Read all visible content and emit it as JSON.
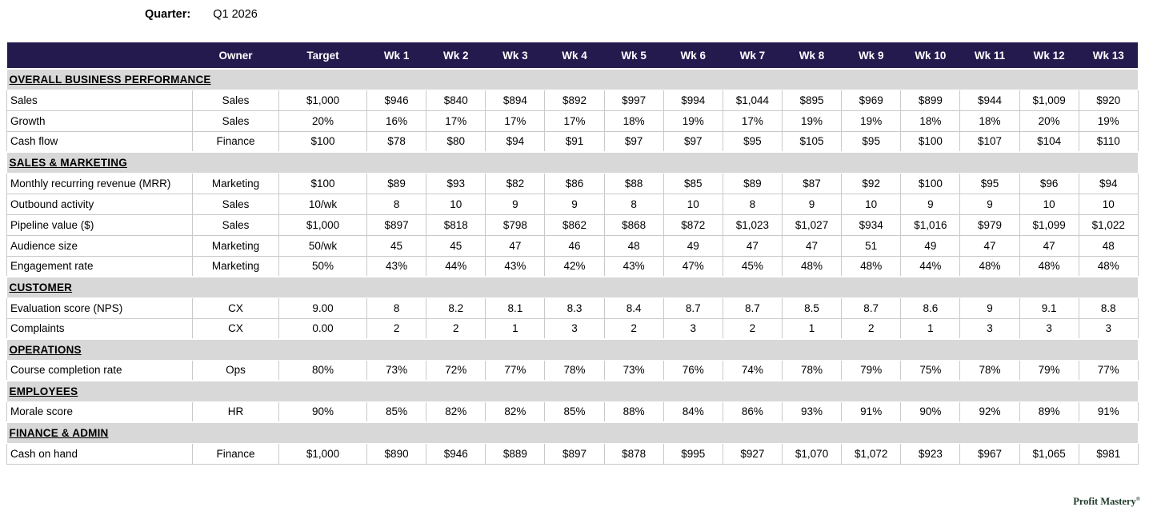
{
  "page": {
    "quarter_label": "Quarter:",
    "quarter_value": "Q1 2026",
    "brand": "Profit Mastery",
    "brand_registered": "®"
  },
  "colors": {
    "header_bg": "#251a4e",
    "header_text": "#ffffff",
    "section_bg": "#d8d8d8",
    "grid_border": "#c9c9c9",
    "brand_text": "#1e3a2a"
  },
  "table": {
    "columns": [
      "Owner",
      "Target",
      "Wk 1",
      "Wk 2",
      "Wk 3",
      "Wk 4",
      "Wk 5",
      "Wk 6",
      "Wk 7",
      "Wk 8",
      "Wk 9",
      "Wk 10",
      "Wk 11",
      "Wk 12",
      "Wk 13"
    ],
    "sections": [
      {
        "title": "OVERALL BUSINESS PERFORMANCE",
        "rows": [
          {
            "metric": "Sales",
            "owner": "Sales",
            "target": "$1,000",
            "values": [
              "$946",
              "$840",
              "$894",
              "$892",
              "$997",
              "$994",
              "$1,044",
              "$895",
              "$969",
              "$899",
              "$944",
              "$1,009",
              "$920"
            ]
          },
          {
            "metric": "Growth",
            "owner": "Sales",
            "target": "20%",
            "values": [
              "16%",
              "17%",
              "17%",
              "17%",
              "18%",
              "19%",
              "17%",
              "19%",
              "19%",
              "18%",
              "18%",
              "20%",
              "19%"
            ]
          },
          {
            "metric": "Cash flow",
            "owner": "Finance",
            "target": "$100",
            "values": [
              "$78",
              "$80",
              "$94",
              "$91",
              "$97",
              "$97",
              "$95",
              "$105",
              "$95",
              "$100",
              "$107",
              "$104",
              "$110"
            ]
          }
        ]
      },
      {
        "title": "SALES & MARKETING",
        "rows": [
          {
            "metric": "Monthly recurring revenue (MRR)",
            "owner": "Marketing",
            "target": "$100",
            "values": [
              "$89",
              "$93",
              "$82",
              "$86",
              "$88",
              "$85",
              "$89",
              "$87",
              "$92",
              "$100",
              "$95",
              "$96",
              "$94"
            ]
          },
          {
            "metric": "Outbound activity",
            "owner": "Sales",
            "target": "10/wk",
            "values": [
              "8",
              "10",
              "9",
              "9",
              "8",
              "10",
              "8",
              "9",
              "10",
              "9",
              "9",
              "10",
              "10"
            ]
          },
          {
            "metric": "Pipeline value ($)",
            "owner": "Sales",
            "target": "$1,000",
            "values": [
              "$897",
              "$818",
              "$798",
              "$862",
              "$868",
              "$872",
              "$1,023",
              "$1,027",
              "$934",
              "$1,016",
              "$979",
              "$1,099",
              "$1,022"
            ]
          },
          {
            "metric": "Audience size",
            "owner": "Marketing",
            "target": "50/wk",
            "values": [
              "45",
              "45",
              "47",
              "46",
              "48",
              "49",
              "47",
              "47",
              "51",
              "49",
              "47",
              "47",
              "48"
            ]
          },
          {
            "metric": "Engagement rate",
            "owner": "Marketing",
            "target": "50%",
            "values": [
              "43%",
              "44%",
              "43%",
              "42%",
              "43%",
              "47%",
              "45%",
              "48%",
              "48%",
              "44%",
              "48%",
              "48%",
              "48%"
            ]
          }
        ]
      },
      {
        "title": "CUSTOMER",
        "rows": [
          {
            "metric": "Evaluation score (NPS)",
            "owner": "CX",
            "target": "9.00",
            "values": [
              "8",
              "8.2",
              "8.1",
              "8.3",
              "8.4",
              "8.7",
              "8.7",
              "8.5",
              "8.7",
              "8.6",
              "9",
              "9.1",
              "8.8"
            ]
          },
          {
            "metric": "Complaints",
            "owner": "CX",
            "target": "0.00",
            "values": [
              "2",
              "2",
              "1",
              "3",
              "2",
              "3",
              "2",
              "1",
              "2",
              "1",
              "3",
              "3",
              "3"
            ]
          }
        ]
      },
      {
        "title": "OPERATIONS",
        "rows": [
          {
            "metric": "Course completion rate",
            "owner": "Ops",
            "target": "80%",
            "values": [
              "73%",
              "72%",
              "77%",
              "78%",
              "73%",
              "76%",
              "74%",
              "78%",
              "79%",
              "75%",
              "78%",
              "79%",
              "77%"
            ]
          }
        ]
      },
      {
        "title": "EMPLOYEES",
        "rows": [
          {
            "metric": "Morale score",
            "owner": "HR",
            "target": "90%",
            "values": [
              "85%",
              "82%",
              "82%",
              "85%",
              "88%",
              "84%",
              "86%",
              "93%",
              "91%",
              "90%",
              "92%",
              "89%",
              "91%"
            ]
          }
        ]
      },
      {
        "title": "FINANCE & ADMIN",
        "rows": [
          {
            "metric": "Cash on hand",
            "owner": "Finance",
            "target": "$1,000",
            "values": [
              "$890",
              "$946",
              "$889",
              "$897",
              "$878",
              "$995",
              "$927",
              "$1,070",
              "$1,072",
              "$923",
              "$967",
              "$1,065",
              "$981"
            ]
          }
        ]
      }
    ]
  }
}
